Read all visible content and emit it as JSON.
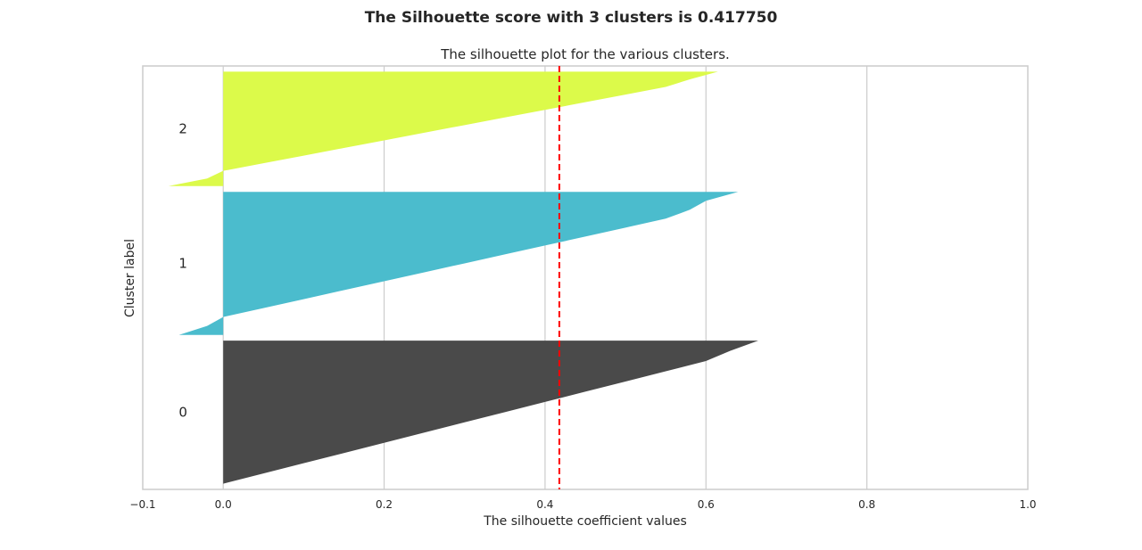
{
  "suptitle": "The Silhouette score with 3 clusters is 0.417750",
  "chart_data": {
    "type": "area",
    "title": "The silhouette plot for the various clusters.",
    "xlabel": "The silhouette coefficient values",
    "ylabel": "Cluster label",
    "xlim": [
      -0.1,
      1.0
    ],
    "xticks": [
      -0.1,
      0.0,
      0.2,
      0.4,
      0.6,
      0.8,
      1.0
    ],
    "xtick_labels": [
      "−0.1",
      "0.0",
      "0.2",
      "0.4",
      "0.6",
      "0.8",
      "1.0"
    ],
    "grid": true,
    "average_silhouette_score": 0.41775,
    "reference_line": {
      "x": 0.41775,
      "color": "#ff0000",
      "style": "dashed"
    },
    "clusters": [
      {
        "label": "0",
        "color": "#4a4a4a",
        "sorted_silhouette_values": [
          0.0,
          0.05,
          0.1,
          0.15,
          0.2,
          0.25,
          0.3,
          0.35,
          0.4,
          0.45,
          0.5,
          0.55,
          0.6,
          0.63,
          0.665
        ]
      },
      {
        "label": "1",
        "color": "#4bbccd",
        "sorted_silhouette_values": [
          -0.055,
          -0.02,
          0.0,
          0.05,
          0.1,
          0.15,
          0.2,
          0.25,
          0.3,
          0.35,
          0.4,
          0.45,
          0.5,
          0.55,
          0.58,
          0.6,
          0.64
        ]
      },
      {
        "label": "2",
        "color": "#dcfa4a",
        "sorted_silhouette_values": [
          -0.068,
          -0.02,
          0.0,
          0.05,
          0.1,
          0.15,
          0.2,
          0.25,
          0.3,
          0.35,
          0.4,
          0.45,
          0.5,
          0.55,
          0.58,
          0.615
        ]
      }
    ]
  }
}
